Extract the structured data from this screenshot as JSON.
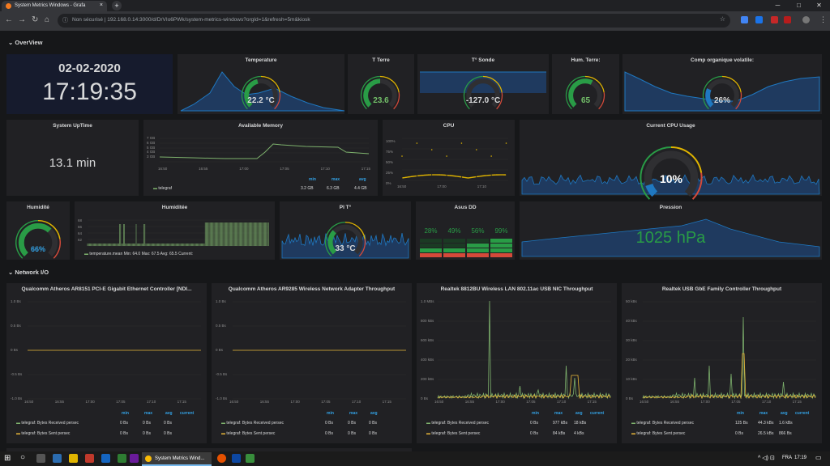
{
  "browser": {
    "tab_title": "System Metrics Windows - Grafa",
    "url_secure": "Non sécurisé",
    "url": "192.168.0.14:3000/d/DrVIo6PWk/system-metrics-windows?orgId=1&refresh=5m&kiosk",
    "win_min": "─",
    "win_max": "□",
    "win_close": "✕"
  },
  "rows": {
    "overview": "OverView",
    "network": "Network I/O"
  },
  "clock": {
    "date": "02-02-2020",
    "time": "17:19:35"
  },
  "stats": {
    "temperature": {
      "title": "Temperature",
      "value": "22.2 °C",
      "level": 0.45
    },
    "t_terre": {
      "title": "T Terre",
      "value": "23.6",
      "level": 0.5
    },
    "t_sonde": {
      "title": "T° Sonde",
      "value": "-127.0 °C",
      "level": 0
    },
    "hum_terre": {
      "title": "Hum. Terre:",
      "value": "65",
      "level": 0.6
    },
    "comp_org": {
      "title": "Comp organique volatile:",
      "value": "26%",
      "level": 0.26
    },
    "uptime": {
      "title": "System UpTime",
      "value": "13.1 min"
    },
    "cpu_gauge": {
      "title": "Current CPU Usage",
      "value": "10%",
      "level": 0.1
    },
    "humidite1": {
      "title": "Humidité",
      "value": "66%",
      "level": 0.66
    },
    "pit": {
      "title": "PI T°",
      "value": "33 °C",
      "level": 0.33
    },
    "pression": {
      "title": "Pression",
      "value": "1025 hPa"
    }
  },
  "memory": {
    "title": "Available Memory",
    "yticks": [
      "7 GB",
      "6 GB",
      "5 GB",
      "4 GB",
      "3 GB"
    ],
    "xticks": [
      "16:50",
      "16:55",
      "17:00",
      "17:05",
      "17:10",
      "17:15"
    ],
    "legend_hdr": [
      "min",
      "max",
      "avg"
    ],
    "series": "telegraf",
    "min": "3.2 GB",
    "max": "6.3 GB",
    "avg": "4.4 GB"
  },
  "cpu": {
    "title": "CPU",
    "yticks": [
      "100%",
      "75%",
      "50%",
      "25%",
      "0%"
    ],
    "xticks": [
      "16:50",
      "17:00",
      "17:10"
    ]
  },
  "humidite2": {
    "title": "Humiditée",
    "yticks": [
      "68",
      "66",
      "64",
      "62"
    ],
    "legend": "temperature.mean  Min: 64.0  Max: 67.5  Avg: 65.5  Current:"
  },
  "asus": {
    "title": "Asus DD",
    "values": [
      "28%",
      "49%",
      "56%",
      "99%"
    ],
    "levels": [
      0.28,
      0.49,
      0.56,
      0.99
    ]
  },
  "net": [
    {
      "title": "Qualcomm Atheros AR8151 PCI-E Gigabit Ethernet Controller [NDI...",
      "yticks": [
        "1.0 Bs",
        "0.5 Bs",
        "0 Bs",
        "-0.5 Bs",
        "-1.0 Bs"
      ],
      "xticks": [
        "16:50",
        "16:55",
        "17:00",
        "17:05",
        "17:10",
        "17:15"
      ],
      "hdr": [
        "min",
        "max",
        "avg",
        "current"
      ],
      "s1": "telegraf: Bytes Received persec",
      "s1v": [
        "0 Bs",
        "0 Bs",
        "0 Bs",
        ""
      ],
      "s2": "telegraf: Bytes Sent persec",
      "s2v": [
        "0 Bs",
        "0 Bs",
        "0 Bs",
        ""
      ]
    },
    {
      "title": "Qualcomm Atheros AR9285 Wireless Network Adapter Throughput",
      "yticks": [
        "1.0 Bs",
        "0.5 Bs",
        "0 Bs",
        "-0.5 Bs",
        "-1.0 Bs"
      ],
      "xticks": [
        "16:50",
        "16:55",
        "17:00",
        "17:05",
        "17:10",
        "17:15"
      ],
      "hdr": [
        "min",
        "max",
        "avg"
      ],
      "s1": "telegraf: Bytes Received persec",
      "s1v": [
        "0 Bs",
        "0 Bs",
        "0 Bs"
      ],
      "s2": "telegraf: Bytes Sent persec",
      "s2v": [
        "0 Bs",
        "0 Bs",
        "0 Bs"
      ]
    },
    {
      "title": "Realtek 8812BU Wireless LAN 802.11ac USB NIC Throughput",
      "yticks": [
        "1.0 MBs",
        "800 kBs",
        "600 kBs",
        "400 kBs",
        "200 kBs",
        "0 Bs"
      ],
      "xticks": [
        "16:50",
        "16:55",
        "17:00",
        "17:05",
        "17:10",
        "17:15"
      ],
      "hdr": [
        "min",
        "max",
        "avg",
        "current"
      ],
      "s1": "telegraf: Bytes Received persec",
      "s1v": [
        "0 Bs",
        "977 kBs",
        "18 kBs",
        ""
      ],
      "s2": "telegraf: Bytes Sent persec",
      "s2v": [
        "0 Bs",
        "84 kBs",
        "4 kBs",
        ""
      ]
    },
    {
      "title": "Realtek USB GbE Family Controller Throughput",
      "yticks": [
        "50 kBs",
        "40 kBs",
        "30 kBs",
        "20 kBs",
        "10 kBs",
        "0 Bs"
      ],
      "xticks": [
        "16:50",
        "16:55",
        "17:00",
        "17:05",
        "17:10",
        "17:15"
      ],
      "hdr": [
        "min",
        "max",
        "avg",
        "current"
      ],
      "s1": "telegraf: Bytes Received persec",
      "s1v": [
        "125 Bs",
        "44.3 kBs",
        "1.6 kBs",
        ""
      ],
      "s2": "telegraf: Bytes Sent persec",
      "s2v": [
        "0 Bs",
        "26.5 kBs",
        "866 Bs",
        ""
      ]
    }
  ],
  "taskbar": {
    "active": "System Metrics Wind...",
    "time": "17:19",
    "lang": "FRA"
  },
  "colors": {
    "blue": "#1f78c1",
    "green": "#299c46",
    "yellow": "#e0b400",
    "red": "#d44a3a",
    "accent": "#33a2e5"
  }
}
